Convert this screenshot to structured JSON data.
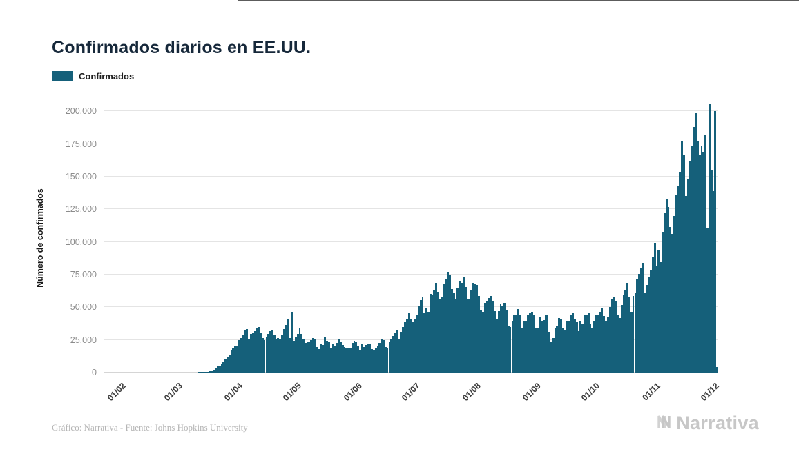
{
  "title": "Confirmados diarios en EE.UU.",
  "legend": {
    "label": "Confirmados",
    "color": "#15607a"
  },
  "footer": {
    "credit": "Gráfico: Narrativa - Fuente: Johns Hopkins University",
    "brand": "Narrativa"
  },
  "chart_data": {
    "type": "bar",
    "title": "Confirmados diarios en EE.UU.",
    "xlabel": "",
    "ylabel": "Número de confirmados",
    "ylim": [
      0,
      208000
    ],
    "grid": "horizontal",
    "legend_position": "top-left",
    "yticks": [
      0,
      25000,
      50000,
      75000,
      100000,
      125000,
      150000,
      175000,
      200000
    ],
    "ytick_labels": [
      "0",
      "25.000",
      "50.000",
      "75.000",
      "100.000",
      "125.000",
      "150.000",
      "175.000",
      "200.000"
    ],
    "xticks": [
      {
        "label": "01/02",
        "index": 10
      },
      {
        "label": "01/03",
        "index": 39
      },
      {
        "label": "01/04",
        "index": 70
      },
      {
        "label": "01/05",
        "index": 100
      },
      {
        "label": "01/06",
        "index": 131
      },
      {
        "label": "01/07",
        "index": 161
      },
      {
        "label": "01/08",
        "index": 192
      },
      {
        "label": "01/09",
        "index": 223
      },
      {
        "label": "01/10",
        "index": 253
      },
      {
        "label": "01/11",
        "index": 284
      },
      {
        "label": "01/12",
        "index": 314
      }
    ],
    "series": [
      {
        "name": "Confirmados",
        "color": "#15607a",
        "values": [
          1,
          0,
          1,
          0,
          3,
          0,
          0,
          2,
          0,
          3,
          1,
          0,
          2,
          1,
          2,
          0,
          1,
          3,
          0,
          2,
          1,
          3,
          2,
          0,
          4,
          0,
          3,
          2,
          1,
          3,
          2,
          4,
          3,
          6,
          8,
          6,
          5,
          7,
          9,
          24,
          20,
          31,
          68,
          45,
          140,
          111,
          176,
          132,
          294,
          278,
          345,
          414,
          530,
          723,
          821,
          1038,
          1766,
          2988,
          4835,
          5374,
          7123,
          8459,
          10189,
          11656,
          13963,
          16797,
          18695,
          19979,
          20343,
          24742,
          26655,
          28325,
          32105,
          33264,
          25316,
          29595,
          30613,
          31709,
          33626,
          35098,
          29861,
          26641,
          25023,
          26922,
          29468,
          31532,
          32165,
          28391,
          25826,
          26197,
          25480,
          28674,
          33364,
          36188,
          40425,
          26509,
          46329,
          24308,
          27327,
          29517,
          34032,
          29763,
          25206,
          22593,
          23366,
          23848,
          24798,
          26660,
          25253,
          19749,
          18117,
          21492,
          20948,
          26780,
          24487,
          23290,
          18873,
          21841,
          19970,
          22789,
          25434,
          23294,
          21323,
          19698,
          18263,
          18910,
          18611,
          22577,
          24266,
          23275,
          20007,
          16817,
          21392,
          19699,
          21140,
          21740,
          22302,
          17919,
          17598,
          18522,
          20486,
          22800,
          25540,
          24720,
          19543,
          19193,
          23318,
          25554,
          27762,
          30338,
          32411,
          26079,
          31402,
          34720,
          38672,
          40588,
          45255,
          41390,
          38673,
          41075,
          43644,
          51097,
          55442,
          57718,
          45255,
          49199,
          46329,
          60021,
          59260,
          63243,
          68867,
          61719,
          56336,
          58114,
          67417,
          71670,
          77255,
          74710,
          63698,
          61462,
          56336,
          64488,
          70106,
          68804,
          73400,
          65490,
          55846,
          56032,
          63246,
          68673,
          68032,
          67023,
          58429,
          47508,
          46321,
          53158,
          55148,
          57120,
          58617,
          54147,
          47112,
          40522,
          46808,
          52509,
          50443,
          53143,
          47679,
          35240,
          35112,
          39715,
          44091,
          44023,
          48693,
          44023,
          34567,
          38986,
          39318,
          43772,
          45341,
          46393,
          44212,
          34400,
          33910,
          42625,
          39014,
          40029,
          44112,
          43718,
          31040,
          23269,
          26196,
          34193,
          35286,
          41722,
          41135,
          34450,
          32477,
          38973,
          39011,
          44357,
          45328,
          41321,
          38679,
          31521,
          39818,
          36820,
          43772,
          44023,
          45341,
          36790,
          33910,
          39014,
          43718,
          44092,
          46676,
          49435,
          43125,
          39004,
          42766,
          50395,
          56191,
          57420,
          54684,
          44614,
          41653,
          51939,
          59751,
          63610,
          68767,
          57420,
          46614,
          58387,
          60789,
          71671,
          75687,
          79963,
          83747,
          60789,
          66798,
          73240,
          78358,
          88521,
          99321,
          81227,
          93581,
          84218,
          107872,
          121888,
          132797,
          126714,
          111651,
          105927,
          119608,
          136325,
          143231,
          153496,
          177224,
          166555,
          135187,
          148532,
          162294,
          172935,
          187833,
          198536,
          177552,
          166555,
          172935,
          169190,
          181490,
          110611,
          205557,
          154856,
          138903,
          199979,
          4265
        ]
      }
    ]
  }
}
